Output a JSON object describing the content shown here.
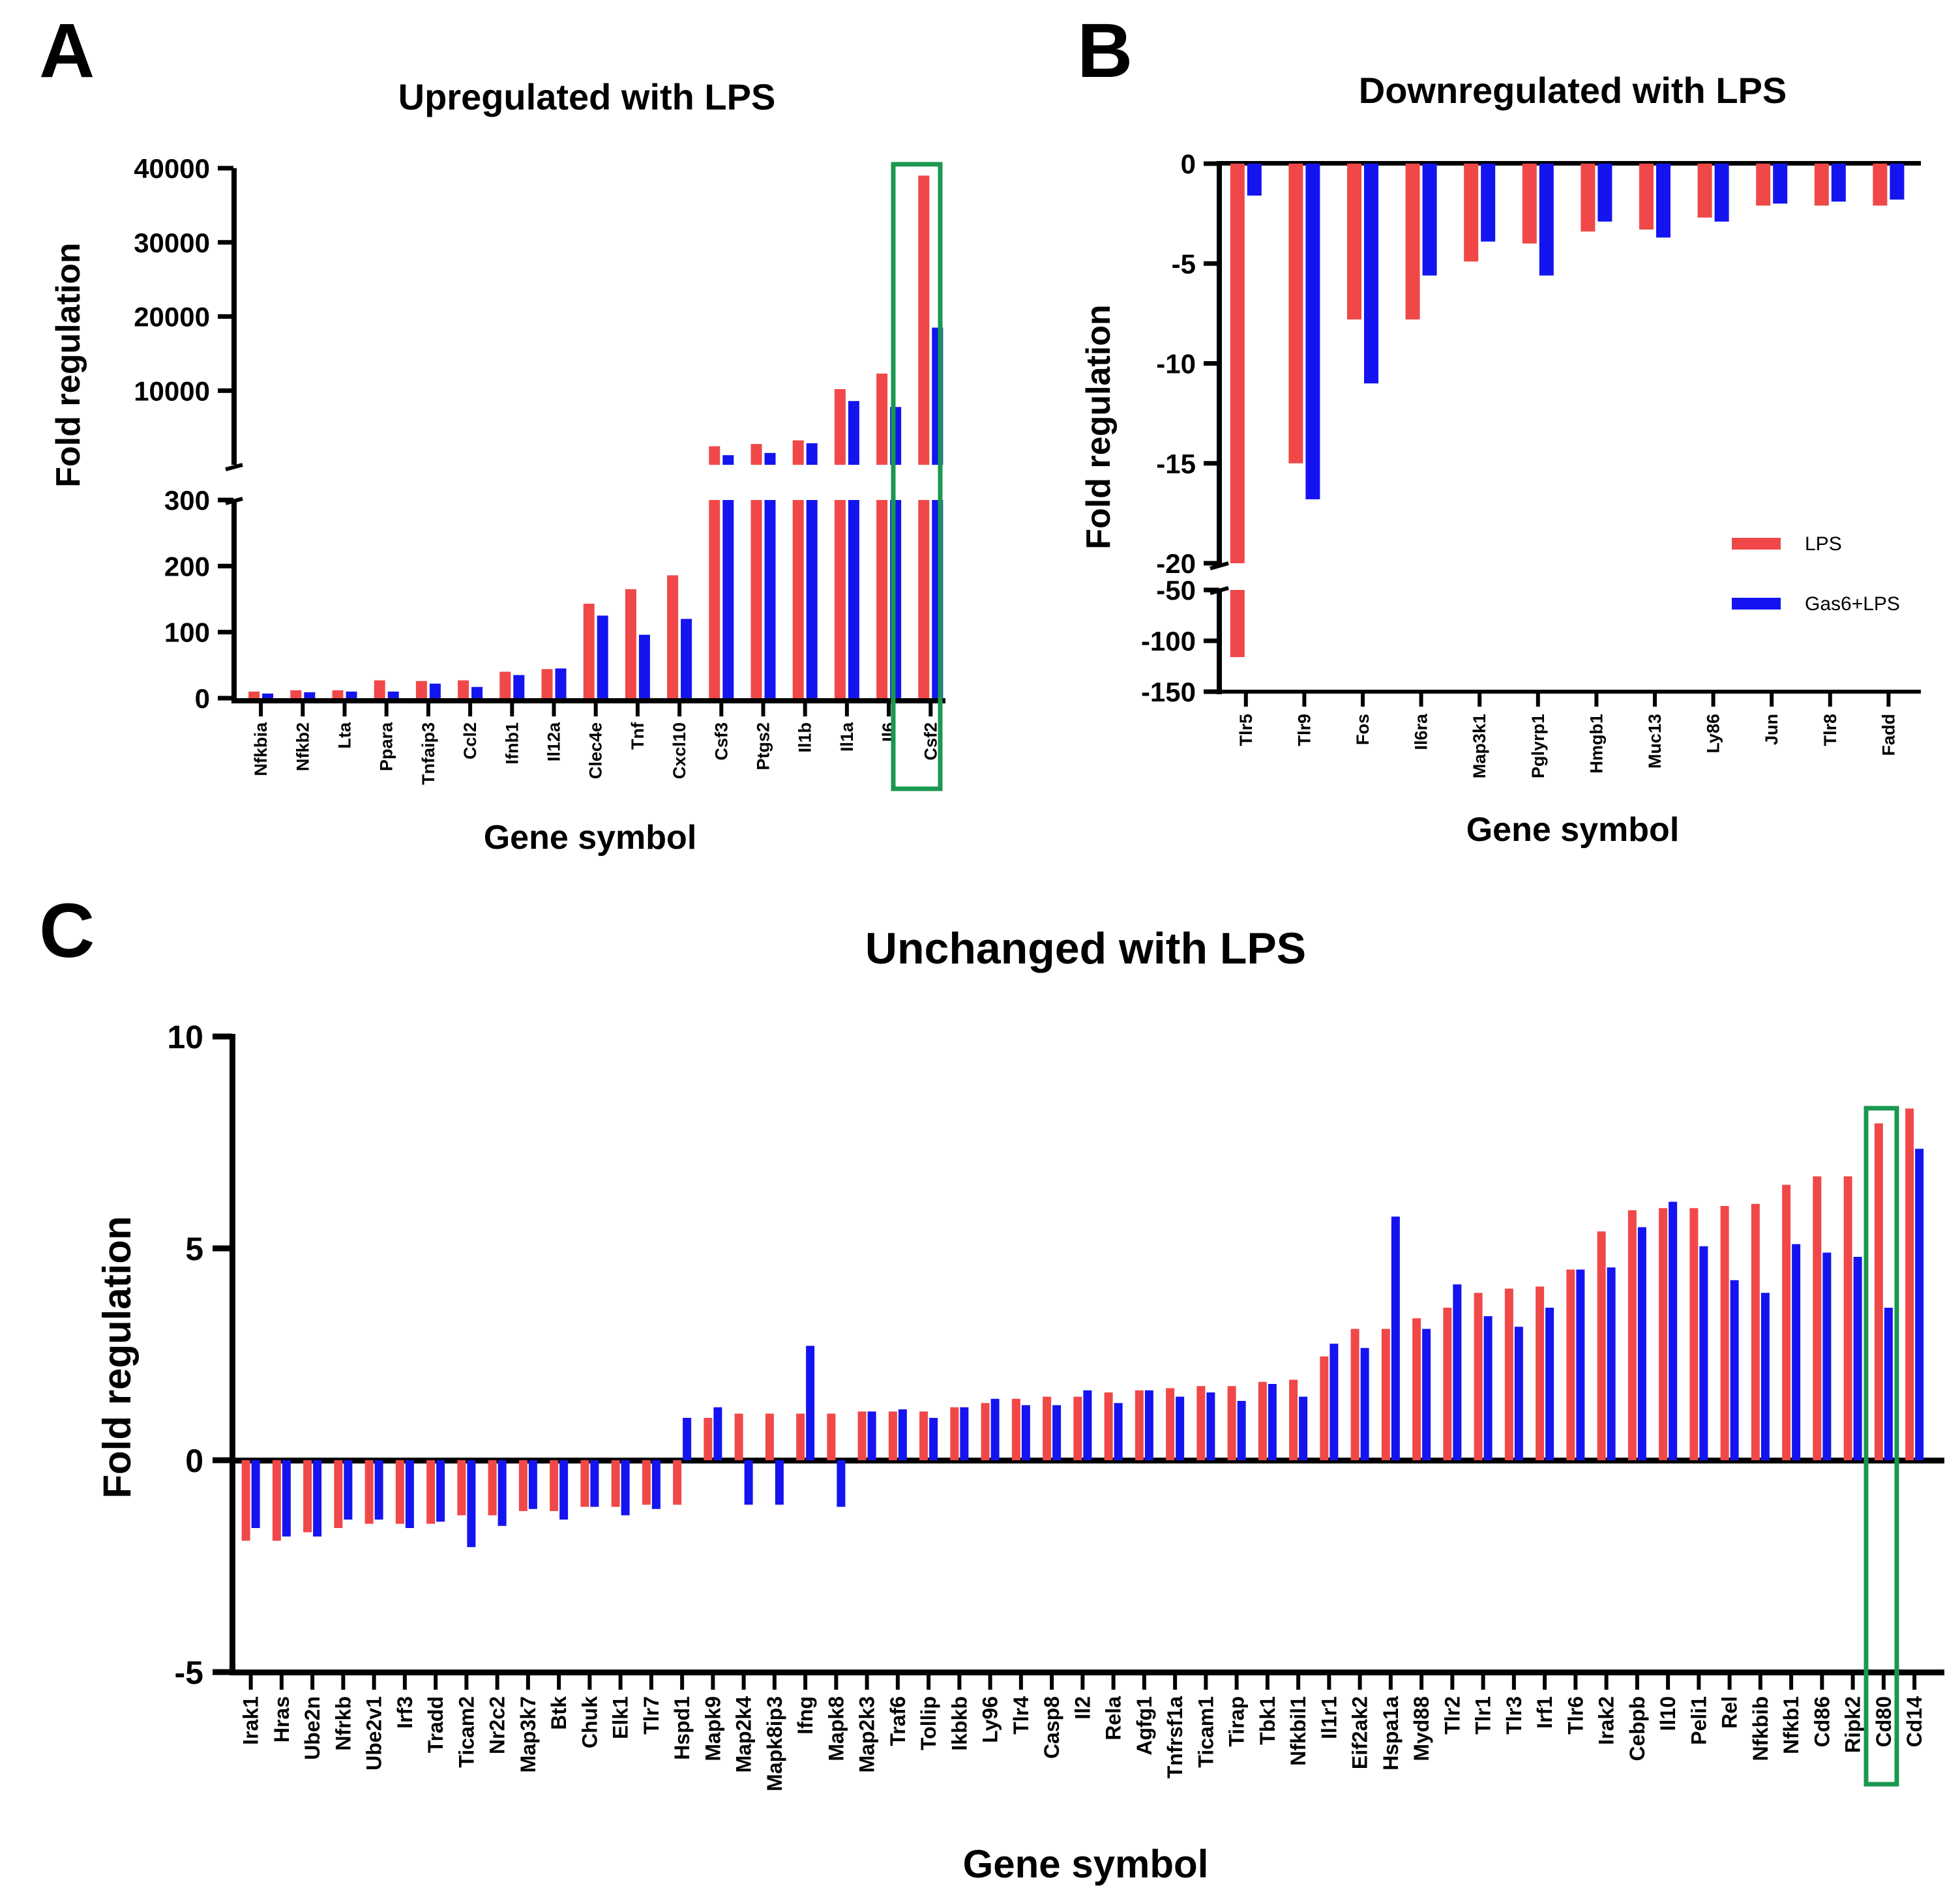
{
  "figure": {
    "legend": {
      "items": [
        {
          "label": "LPS",
          "color": "#f04848"
        },
        {
          "label": "Gas6+LPS",
          "color": "#1414f0"
        }
      ]
    },
    "highlight_color": "#1a9850"
  },
  "chart_data": [
    {
      "panel": "A",
      "type": "bar",
      "title": "Upregulated with LPS",
      "xlabel": "Gene symbol",
      "ylabel": "Fold regulation",
      "y_axis_break": {
        "lower_range": [
          0,
          300
        ],
        "upper_range": [
          0,
          40000
        ]
      },
      "lower_ticks": [
        "0",
        "100",
        "200",
        "300"
      ],
      "upper_ticks": [
        "10000",
        "20000",
        "30000",
        "40000"
      ],
      "categories": [
        "Nfkbia",
        "Nfkb2",
        "Lta",
        "Ppara",
        "Tnfaip3",
        "Ccl2",
        "Ifnb1",
        "Il12a",
        "Clec4e",
        "Tnf",
        "Cxcl10",
        "Csf3",
        "Ptgs2",
        "Il1b",
        "Il1a",
        "Il6",
        "Csf2"
      ],
      "highlighted_category": "Csf2",
      "series": [
        {
          "name": "LPS",
          "values": [
            10,
            12,
            12,
            27,
            26,
            27,
            40,
            44,
            143,
            165,
            186,
            2500,
            2800,
            3300,
            10200,
            12300,
            39000
          ]
        },
        {
          "name": "Gas6+LPS",
          "values": [
            7,
            9,
            10,
            10,
            22,
            17,
            35,
            45,
            125,
            96,
            120,
            1300,
            1600,
            2900,
            8600,
            7800,
            18500
          ]
        }
      ]
    },
    {
      "panel": "B",
      "type": "bar",
      "title": "Downregulated with LPS",
      "xlabel": "Gene symbol",
      "ylabel": "Fold regulation",
      "y_axis_break": {
        "upper_range": [
          -20,
          0
        ],
        "lower_range": [
          -150,
          -50
        ]
      },
      "upper_ticks": [
        "0",
        "-5",
        "-10",
        "-15",
        "-20"
      ],
      "lower_ticks": [
        "-50",
        "-100",
        "-150"
      ],
      "categories": [
        "Tlr5",
        "Tlr9",
        "Fos",
        "Il6ra",
        "Map3k1",
        "Pglyrp1",
        "Hmgb1",
        "Muc13",
        "Ly86",
        "Jun",
        "Tlr8",
        "Fadd"
      ],
      "series": [
        {
          "name": "LPS",
          "values": [
            -116,
            -15.0,
            -7.8,
            -7.8,
            -4.9,
            -4.0,
            -3.4,
            -3.3,
            -2.7,
            -2.1,
            -2.1,
            -2.1
          ]
        },
        {
          "name": "Gas6+LPS",
          "values": [
            -1.6,
            -16.8,
            -11.0,
            -5.6,
            -3.9,
            -5.6,
            -2.9,
            -3.7,
            -2.9,
            -2.0,
            -1.9,
            -1.8
          ]
        }
      ]
    },
    {
      "panel": "C",
      "type": "bar",
      "title": "Unchanged with LPS",
      "xlabel": "Gene symbol",
      "ylabel": "Fold regulation",
      "ylim": [
        -5,
        10
      ],
      "yticks": [
        "-5",
        "0",
        "5",
        "10"
      ],
      "categories": [
        "Irak1",
        "Hras",
        "Ube2n",
        "Nfrkb",
        "Ube2v1",
        "Irf3",
        "Tradd",
        "Ticam2",
        "Nr2c2",
        "Map3k7",
        "Btk",
        "Chuk",
        "Elk1",
        "Tlr7",
        "Hspd1",
        "Mapk9",
        "Map2k4",
        "Mapk8ip3",
        "Ifng",
        "Mapk8",
        "Map2k3",
        "Traf6",
        "Tollip",
        "Ikbkb",
        "Ly96",
        "Tlr4",
        "Casp8",
        "Il2",
        "Rela",
        "Agfg1",
        "Tnfrsf1a",
        "Ticam1",
        "Tirap",
        "Tbk1",
        "Nfkbil1",
        "Il1r1",
        "Eif2ak2",
        "Hspa1a",
        "Myd88",
        "Tlr2",
        "Tlr1",
        "Tlr3",
        "Irf1",
        "Tlr6",
        "Irak2",
        "Cebpb",
        "Il10",
        "Peli1",
        "Rel",
        "Nfkbib",
        "Nfkb1",
        "Cd86",
        "Ripk2",
        "Cd80",
        "Cd14"
      ],
      "highlighted_category": "Cd80",
      "series": [
        {
          "name": "LPS",
          "values": [
            -1.9,
            -1.9,
            -1.7,
            -1.6,
            -1.5,
            -1.5,
            -1.5,
            -1.3,
            -1.3,
            -1.2,
            -1.2,
            -1.1,
            -1.1,
            -1.05,
            -1.05,
            1.0,
            1.1,
            1.1,
            1.1,
            1.1,
            1.15,
            1.15,
            1.15,
            1.25,
            1.35,
            1.45,
            1.5,
            1.5,
            1.6,
            1.65,
            1.7,
            1.75,
            1.75,
            1.85,
            1.9,
            2.45,
            3.1,
            3.1,
            3.35,
            3.6,
            3.95,
            4.05,
            4.1,
            4.5,
            5.4,
            5.9,
            5.95,
            5.95,
            6.0,
            6.05,
            6.5,
            6.7,
            6.7,
            7.95,
            8.3
          ]
        },
        {
          "name": "Gas6+LPS",
          "values": [
            -1.6,
            -1.8,
            -1.8,
            -1.4,
            -1.4,
            -1.6,
            -1.45,
            -2.05,
            -1.55,
            -1.15,
            -1.4,
            -1.1,
            -1.3,
            -1.15,
            1.0,
            1.25,
            -1.05,
            -1.05,
            2.7,
            -1.1,
            1.15,
            1.2,
            1.0,
            1.25,
            1.45,
            1.3,
            1.3,
            1.65,
            1.35,
            1.65,
            1.5,
            1.6,
            1.4,
            1.8,
            1.5,
            2.75,
            2.65,
            5.75,
            3.1,
            4.15,
            3.4,
            3.15,
            3.6,
            4.5,
            4.55,
            5.5,
            6.1,
            5.05,
            4.25,
            3.95,
            5.1,
            4.9,
            4.8,
            3.6,
            7.35
          ]
        }
      ]
    }
  ]
}
